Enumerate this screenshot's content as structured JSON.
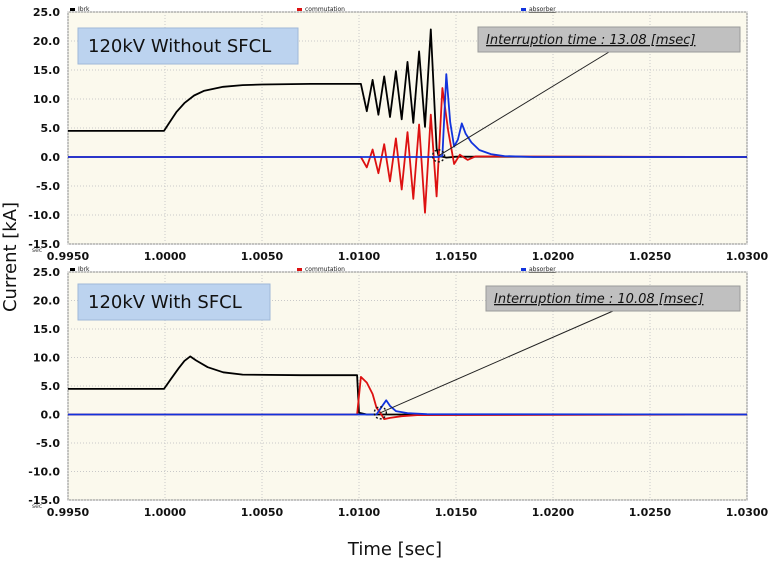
{
  "chart_data": [
    {
      "type": "line",
      "title": "120kV Without SFCL",
      "unit_label": "sec",
      "xlim": [
        0.995,
        1.03
      ],
      "ylim": [
        -15,
        25
      ],
      "x_ticks": [
        "0.9950",
        "1.0000",
        "1.0050",
        "1.0100",
        "1.0150",
        "1.0200",
        "1.0250",
        "1.0300"
      ],
      "y_ticks": [
        "25.0",
        "20.0",
        "15.0",
        "10.0",
        "5.0",
        "0.0",
        "-5.0",
        "-10.0",
        "-15.0"
      ],
      "annotation": {
        "text": "Interruption time : 13.08 [msec]",
        "target": [
          1.0141,
          0.2
        ]
      },
      "series": [
        {
          "name": "Ibrk",
          "color": "#000000",
          "points": [
            [
              0.995,
              4.5
            ],
            [
              0.99995,
              4.5
            ],
            [
              1.0002,
              5.8
            ],
            [
              1.0006,
              7.8
            ],
            [
              1.001,
              9.3
            ],
            [
              1.0015,
              10.6
            ],
            [
              1.002,
              11.4
            ],
            [
              1.003,
              12.1
            ],
            [
              1.004,
              12.4
            ],
            [
              1.005,
              12.5
            ],
            [
              1.0075,
              12.6
            ],
            [
              1.01,
              12.6
            ],
            [
              1.0101,
              12.6
            ],
            [
              1.0104,
              7.9
            ],
            [
              1.0107,
              13.3
            ],
            [
              1.011,
              7.3
            ],
            [
              1.0113,
              13.9
            ],
            [
              1.0116,
              6.9
            ],
            [
              1.0119,
              14.8
            ],
            [
              1.0122,
              6.5
            ],
            [
              1.0125,
              16.4
            ],
            [
              1.0128,
              5.9
            ],
            [
              1.0131,
              18.2
            ],
            [
              1.0134,
              5.2
            ],
            [
              1.0137,
              22.0
            ],
            [
              1.014,
              1.5
            ],
            [
              1.0141,
              0.2
            ],
            [
              1.0145,
              -0.1
            ],
            [
              1.015,
              0.05
            ],
            [
              1.03,
              0.0
            ]
          ]
        },
        {
          "name": "commutation",
          "color": "#dd1111",
          "points": [
            [
              0.995,
              0.0
            ],
            [
              1.01,
              0.0
            ],
            [
              1.0101,
              0.0
            ],
            [
              1.0104,
              -1.8
            ],
            [
              1.0107,
              1.3
            ],
            [
              1.011,
              -2.8
            ],
            [
              1.0113,
              2.2
            ],
            [
              1.0116,
              -4.2
            ],
            [
              1.0119,
              3.2
            ],
            [
              1.0122,
              -5.6
            ],
            [
              1.0125,
              4.3
            ],
            [
              1.0128,
              -7.2
            ],
            [
              1.0131,
              5.6
            ],
            [
              1.0134,
              -9.6
            ],
            [
              1.0137,
              7.3
            ],
            [
              1.014,
              -6.8
            ],
            [
              1.0143,
              11.9
            ],
            [
              1.0146,
              4.5
            ],
            [
              1.0149,
              -1.2
            ],
            [
              1.0152,
              0.4
            ],
            [
              1.0156,
              -0.5
            ],
            [
              1.016,
              0.1
            ],
            [
              1.03,
              0.0
            ]
          ]
        },
        {
          "name": "absorber",
          "color": "#1133dd",
          "points": [
            [
              0.995,
              0.0
            ],
            [
              1.0141,
              0.0
            ],
            [
              1.0143,
              0.2
            ],
            [
              1.0145,
              14.3
            ],
            [
              1.0147,
              6.0
            ],
            [
              1.0149,
              1.8
            ],
            [
              1.0151,
              3.0
            ],
            [
              1.0153,
              5.8
            ],
            [
              1.0155,
              4.0
            ],
            [
              1.0158,
              2.5
            ],
            [
              1.0162,
              1.2
            ],
            [
              1.0168,
              0.5
            ],
            [
              1.0175,
              0.15
            ],
            [
              1.019,
              0.0
            ],
            [
              1.03,
              0.0
            ]
          ]
        }
      ]
    },
    {
      "type": "line",
      "title": "120kV With SFCL",
      "unit_label": "sec",
      "xlim": [
        0.995,
        1.03
      ],
      "ylim": [
        -15,
        25
      ],
      "x_ticks": [
        "0.9950",
        "1.0000",
        "1.0050",
        "1.0100",
        "1.0150",
        "1.0200",
        "1.0250",
        "1.0300"
      ],
      "y_ticks": [
        "25.0",
        "20.0",
        "15.0",
        "10.0",
        "5.0",
        "0.0",
        "-5.0",
        "-10.0",
        "-15.0"
      ],
      "annotation": {
        "text": "Interruption time : 10.08 [msec]",
        "target": [
          1.0111,
          0.3
        ]
      },
      "series": [
        {
          "name": "Ibrk",
          "color": "#000000",
          "points": [
            [
              0.995,
              4.5
            ],
            [
              0.99995,
              4.5
            ],
            [
              1.0003,
              6.2
            ],
            [
              1.0007,
              8.1
            ],
            [
              1.001,
              9.4
            ],
            [
              1.0013,
              10.2
            ],
            [
              1.0016,
              9.5
            ],
            [
              1.0022,
              8.3
            ],
            [
              1.003,
              7.4
            ],
            [
              1.004,
              7.0
            ],
            [
              1.007,
              6.9
            ],
            [
              1.0099,
              6.9
            ],
            [
              1.01,
              0.3
            ],
            [
              1.0104,
              0.0
            ],
            [
              1.03,
              0.0
            ]
          ]
        },
        {
          "name": "commutation",
          "color": "#dd1111",
          "points": [
            [
              0.995,
              0.0
            ],
            [
              1.0099,
              0.0
            ],
            [
              1.0101,
              6.6
            ],
            [
              1.0104,
              5.6
            ],
            [
              1.0107,
              3.6
            ],
            [
              1.0109,
              1.2
            ],
            [
              1.0111,
              0.3
            ],
            [
              1.0113,
              -0.8
            ],
            [
              1.0116,
              -0.6
            ],
            [
              1.0122,
              -0.3
            ],
            [
              1.013,
              -0.1
            ],
            [
              1.03,
              0.0
            ]
          ]
        },
        {
          "name": "absorber",
          "color": "#1133dd",
          "points": [
            [
              0.995,
              0.0
            ],
            [
              1.0109,
              0.0
            ],
            [
              1.0112,
              1.5
            ],
            [
              1.0114,
              2.5
            ],
            [
              1.0116,
              1.5
            ],
            [
              1.0119,
              0.6
            ],
            [
              1.0125,
              0.25
            ],
            [
              1.0135,
              0.05
            ],
            [
              1.03,
              0.0
            ]
          ]
        }
      ]
    }
  ],
  "axes": {
    "ylabel": "Current [kA]",
    "xlabel": "Time [sec]"
  },
  "colors": {
    "background": "#ffffff",
    "plot_background": "#fbf9ed",
    "grid": "#c9c9c9",
    "title_box": "#bcd3ef",
    "note_box": "#c0c0c0"
  }
}
